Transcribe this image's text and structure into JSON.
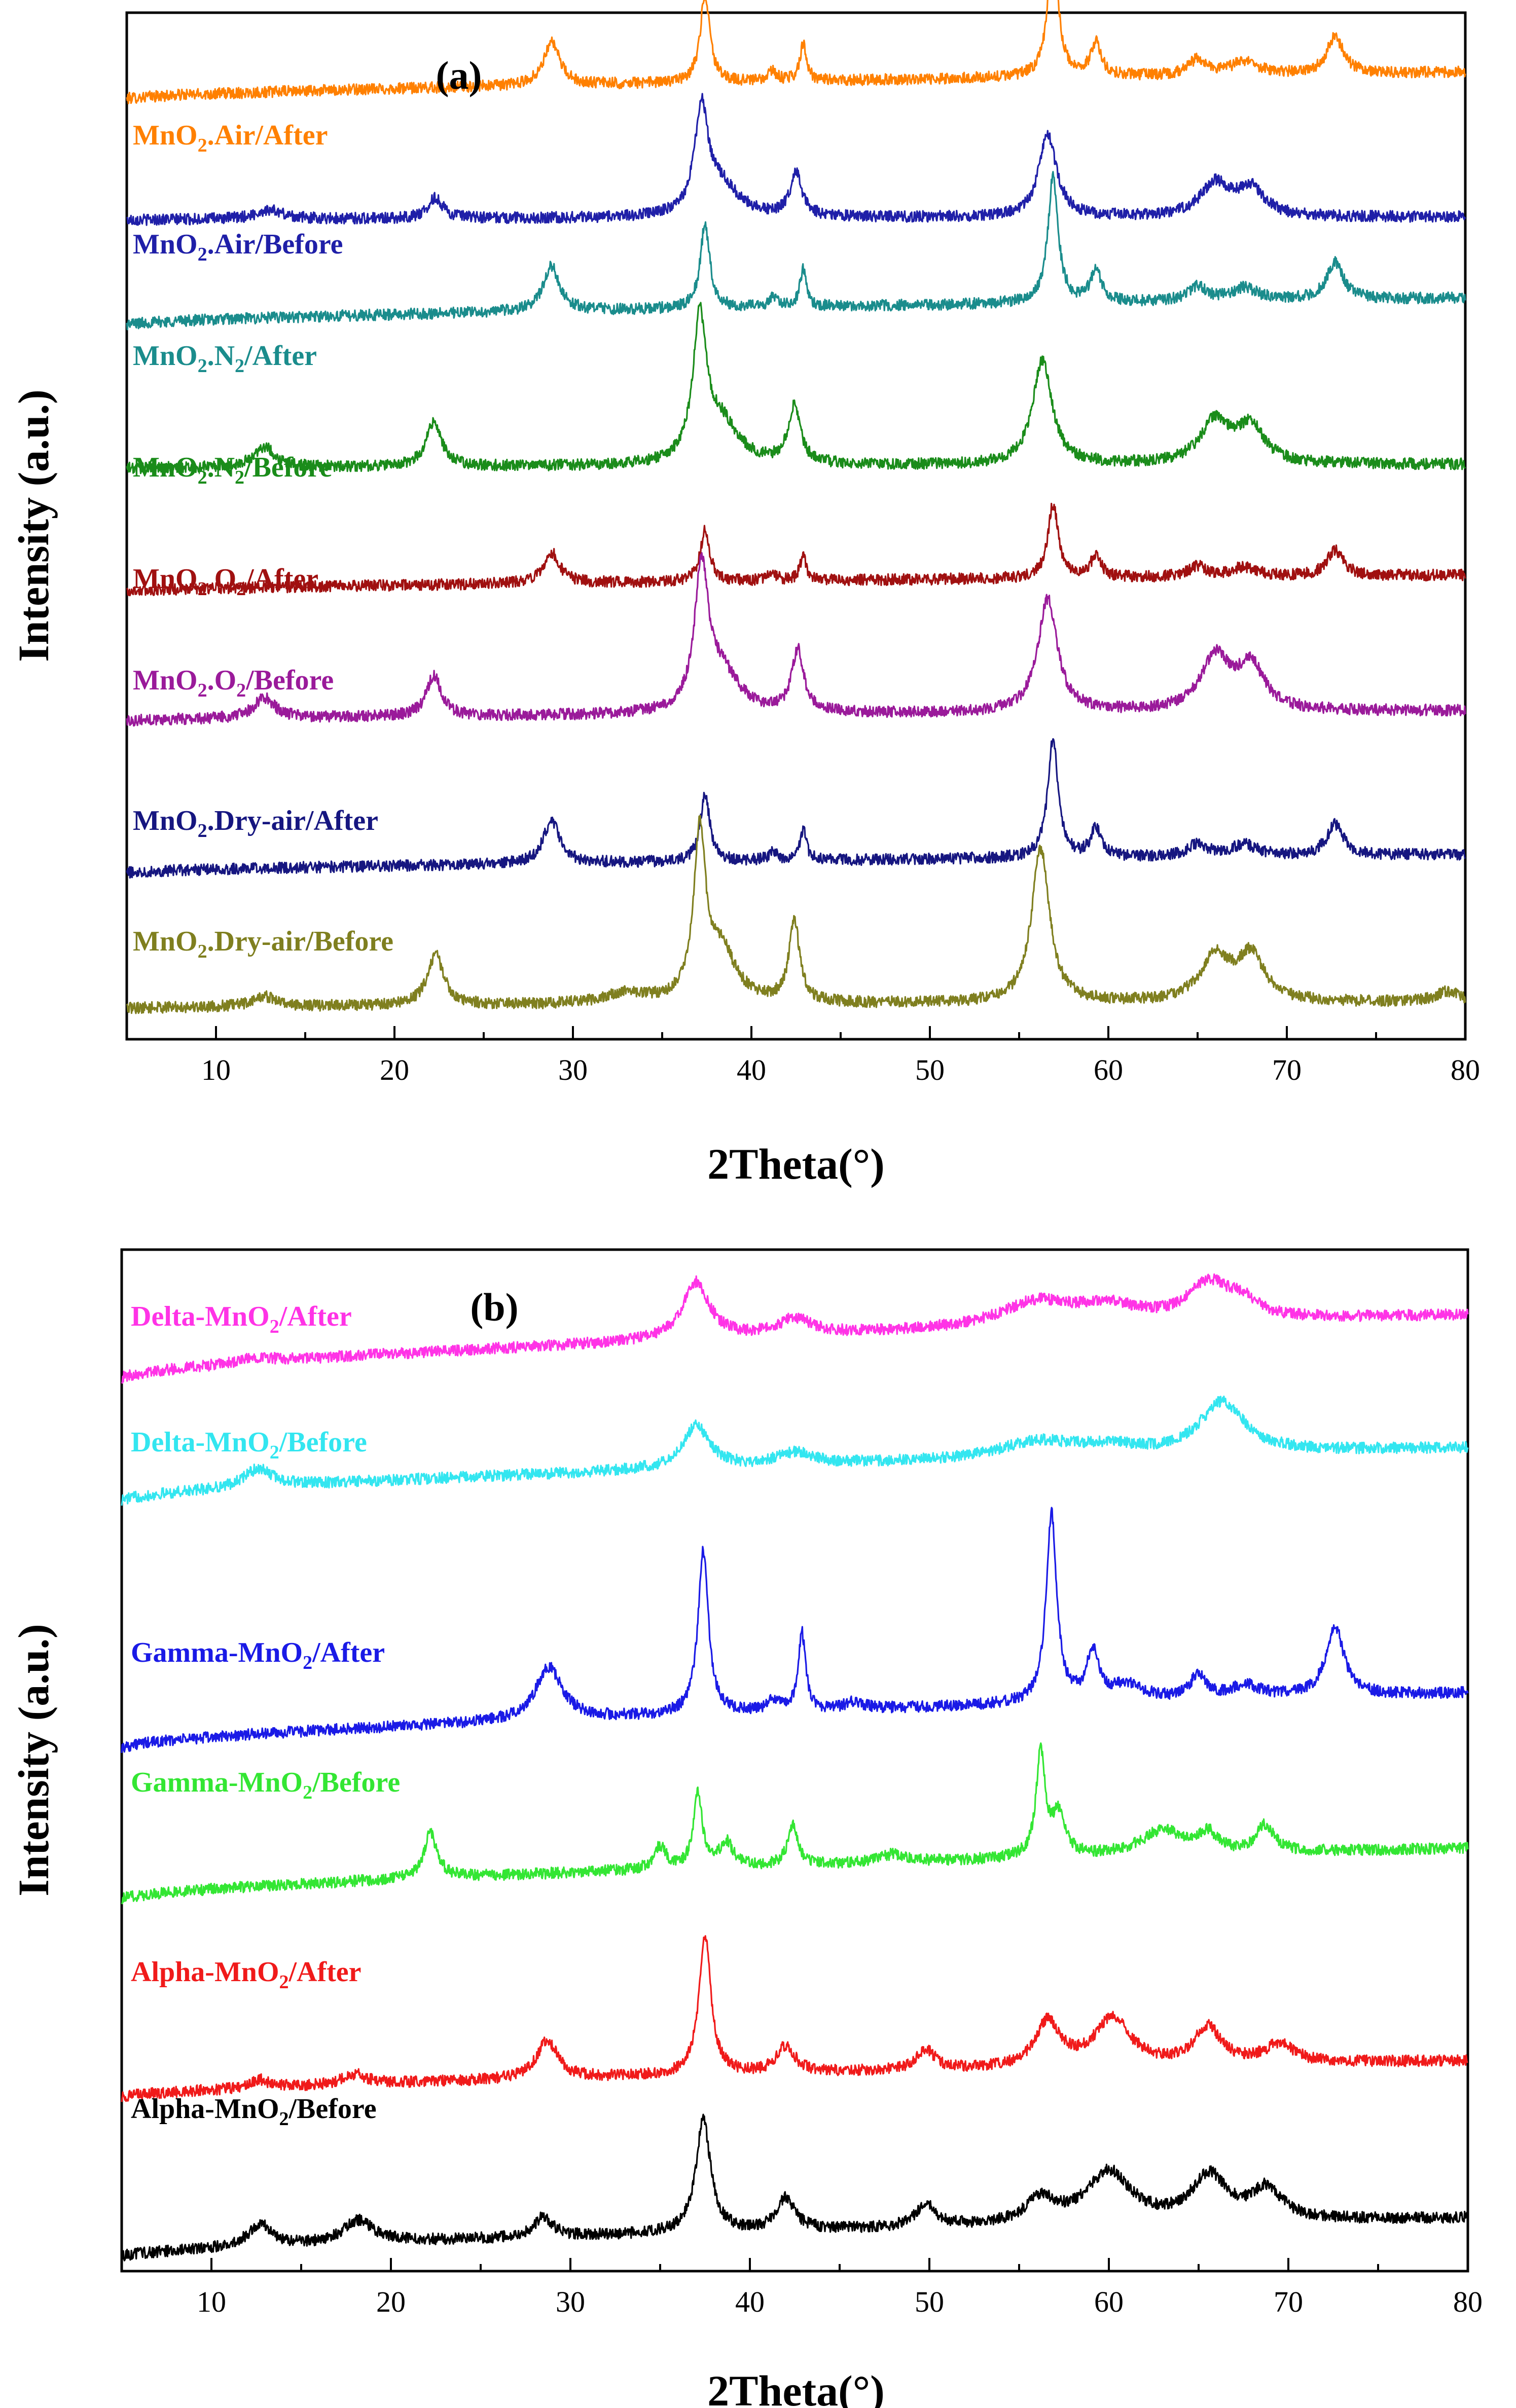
{
  "chart_data": [
    {
      "type": "line",
      "panel_label": "(a)",
      "xlabel": "2Theta(°)",
      "ylabel": "Intensity (a.u.)",
      "xlim": [
        5,
        80
      ],
      "xticks": [
        "10",
        "20",
        "30",
        "40",
        "50",
        "60",
        "70",
        "80"
      ],
      "ylim": [
        0,
        100
      ],
      "series": [
        {
          "name": "MnO2.Air/After",
          "label_parts": [
            "MnO",
            "2",
            ".Air/After"
          ],
          "color": "#FF8000",
          "baseline": 91.6,
          "slope": 2.6,
          "peaks": [
            [
              28.8,
              4.2,
              0.55
            ],
            [
              37.4,
              8.6,
              0.32
            ],
            [
              41.2,
              0.9,
              0.3
            ],
            [
              42.9,
              3.6,
              0.22
            ],
            [
              56.9,
              12.5,
              0.35
            ],
            [
              59.3,
              3.2,
              0.35
            ],
            [
              65.0,
              1.5,
              0.6
            ],
            [
              67.6,
              1.2,
              0.9
            ],
            [
              72.7,
              3.6,
              0.55
            ]
          ]
        },
        {
          "name": "MnO2.Air/Before",
          "label_parts": [
            "MnO",
            "2",
            ".Air/Before"
          ],
          "color": "#1F1FA8",
          "baseline": 79.8,
          "slope": 0.3,
          "peaks": [
            [
              13.0,
              0.9,
              0.9
            ],
            [
              22.3,
              2.0,
              0.5
            ],
            [
              37.2,
              10.0,
              0.45
            ],
            [
              38.3,
              3.0,
              1.2
            ],
            [
              42.5,
              4.2,
              0.4
            ],
            [
              56.6,
              8.0,
              0.6
            ],
            [
              66.0,
              3.2,
              1.0
            ],
            [
              68.0,
              2.6,
              0.9
            ]
          ]
        },
        {
          "name": "MnO2.N2/After",
          "label_parts": [
            "MnO",
            "2",
            ".N",
            "2",
            "/After"
          ],
          "color": "#1A8C8C",
          "baseline": 69.6,
          "slope": 2.6,
          "peaks": [
            [
              28.8,
              4.4,
              0.55
            ],
            [
              37.4,
              8.2,
              0.32
            ],
            [
              41.2,
              0.9,
              0.3
            ],
            [
              42.9,
              3.6,
              0.22
            ],
            [
              56.9,
              12.2,
              0.35
            ],
            [
              59.3,
              3.2,
              0.35
            ],
            [
              65.0,
              1.4,
              0.6
            ],
            [
              67.6,
              1.2,
              0.9
            ],
            [
              72.7,
              3.6,
              0.55
            ]
          ]
        },
        {
          "name": "MnO2.N2/Before",
          "label_parts": [
            "MnO",
            "2",
            ".N",
            "2",
            "/Before"
          ],
          "color": "#1A8C1A",
          "baseline": 55.6,
          "slope": 0.4,
          "peaks": [
            [
              12.7,
              2.0,
              0.7
            ],
            [
              22.2,
              4.4,
              0.5
            ],
            [
              37.1,
              13.5,
              0.45
            ],
            [
              38.3,
              4.0,
              1.2
            ],
            [
              42.4,
              5.6,
              0.4
            ],
            [
              56.3,
              10.2,
              0.65
            ],
            [
              66.0,
              4.2,
              1.0
            ],
            [
              68.0,
              3.5,
              0.9
            ]
          ]
        },
        {
          "name": "MnO2.O2/After",
          "label_parts": [
            "MnO",
            "2",
            ".O",
            "2",
            "/After"
          ],
          "color": "#A01010",
          "baseline": 43.6,
          "slope": 1.6,
          "peaks": [
            [
              28.8,
              3.0,
              0.55
            ],
            [
              37.4,
              5.0,
              0.32
            ],
            [
              41.2,
              0.7,
              0.3
            ],
            [
              42.9,
              2.3,
              0.22
            ],
            [
              56.9,
              7.2,
              0.35
            ],
            [
              59.3,
              2.2,
              0.35
            ],
            [
              65.0,
              1.0,
              0.6
            ],
            [
              67.6,
              0.9,
              0.9
            ],
            [
              72.7,
              2.5,
              0.55
            ]
          ]
        },
        {
          "name": "MnO2.O2/Before",
          "label_parts": [
            "MnO",
            "2",
            ".O",
            "2",
            "/Before"
          ],
          "color": "#9A1A9A",
          "baseline": 31.0,
          "slope": 1.0,
          "peaks": [
            [
              12.7,
              2.0,
              0.7
            ],
            [
              22.2,
              4.0,
              0.5
            ],
            [
              37.2,
              13.5,
              0.45
            ],
            [
              38.3,
              4.0,
              1.2
            ],
            [
              42.6,
              6.0,
              0.4
            ],
            [
              56.6,
              11.0,
              0.65
            ],
            [
              66.0,
              5.2,
              1.0
            ],
            [
              68.0,
              4.2,
              0.9
            ]
          ]
        },
        {
          "name": "MnO2.Dry-air/After",
          "label_parts": [
            "MnO",
            "2",
            ".Dry-air/After"
          ],
          "color": "#161680",
          "baseline": 16.2,
          "slope": 1.8,
          "peaks": [
            [
              28.8,
              4.2,
              0.55
            ],
            [
              37.4,
              6.6,
              0.32
            ],
            [
              41.2,
              0.8,
              0.3
            ],
            [
              42.9,
              3.0,
              0.22
            ],
            [
              56.9,
              11.6,
              0.35
            ],
            [
              59.3,
              2.8,
              0.35
            ],
            [
              65.0,
              1.2,
              0.6
            ],
            [
              67.6,
              1.1,
              0.9
            ],
            [
              72.7,
              3.0,
              0.55
            ]
          ]
        },
        {
          "name": "MnO2.Dry-air/Before",
          "label_parts": [
            "MnO",
            "2",
            ".Dry-air/Before"
          ],
          "color": "#7F7F1F",
          "baseline": 3.0,
          "slope": 0.6,
          "peaks": [
            [
              12.7,
              1.0,
              0.8
            ],
            [
              22.3,
              5.0,
              0.55
            ],
            [
              33.0,
              1.0,
              1.5
            ],
            [
              37.1,
              16.0,
              0.4
            ],
            [
              38.3,
              5.0,
              1.0
            ],
            [
              42.4,
              8.0,
              0.35
            ],
            [
              56.2,
              15.0,
              0.6
            ],
            [
              66.0,
              4.4,
              1.0
            ],
            [
              68.0,
              4.4,
              0.9
            ],
            [
              79.0,
              1.0,
              0.8
            ]
          ]
        }
      ]
    },
    {
      "type": "line",
      "panel_label": "(b)",
      "xlabel": "2Theta(°)",
      "ylabel": "Intensity (a.u.)",
      "xlim": [
        5,
        80
      ],
      "xticks": [
        "10",
        "20",
        "30",
        "40",
        "50",
        "60",
        "70",
        "80"
      ],
      "ylim": [
        0,
        100
      ],
      "series": [
        {
          "name": "Delta-MnO2/After",
          "label_parts": [
            "Delta-MnO",
            "2",
            "/After"
          ],
          "color": "#FF33E6",
          "baseline": 87.4,
          "slope": 6.2,
          "peaks": [
            [
              12.6,
              0.5,
              1.0
            ],
            [
              37.0,
              5.6,
              0.9
            ],
            [
              42.5,
              1.6,
              1.2
            ],
            [
              56.0,
              2.4,
              2.5
            ],
            [
              60.0,
              1.6,
              2.0
            ],
            [
              65.6,
              3.6,
              1.5
            ],
            [
              67.5,
              1.4,
              1.0
            ]
          ]
        },
        {
          "name": "Delta-MnO2/Before",
          "label_parts": [
            "Delta-MnO",
            "2",
            "/Before"
          ],
          "color": "#33E6F0",
          "baseline": 75.4,
          "slope": 5.2,
          "peaks": [
            [
              12.6,
              1.8,
              1.0
            ],
            [
              37.0,
              4.2,
              0.9
            ],
            [
              42.5,
              1.2,
              1.2
            ],
            [
              56.0,
              1.6,
              2.5
            ],
            [
              60.0,
              0.8,
              2.0
            ],
            [
              66.3,
              5.0,
              1.5
            ]
          ]
        },
        {
          "name": "Gamma-MnO2/After",
          "label_parts": [
            "Gamma-MnO",
            "2",
            "/After"
          ],
          "color": "#1A1AE6",
          "baseline": 51.2,
          "slope": 5.4,
          "peaks": [
            [
              28.8,
              5.2,
              0.9
            ],
            [
              37.4,
              16.0,
              0.35
            ],
            [
              41.3,
              1.0,
              0.4
            ],
            [
              42.9,
              7.6,
              0.25
            ],
            [
              45.8,
              0.7,
              0.6
            ],
            [
              56.8,
              18.5,
              0.35
            ],
            [
              59.1,
              4.8,
              0.4
            ],
            [
              61.0,
              1.5,
              1.2
            ],
            [
              65.0,
              2.4,
              0.5
            ],
            [
              67.6,
              1.2,
              1.0
            ],
            [
              72.6,
              6.8,
              0.6
            ]
          ]
        },
        {
          "name": "Gamma-MnO2/Before",
          "label_parts": [
            "Gamma-MnO",
            "2",
            "/Before"
          ],
          "color": "#33E633",
          "baseline": 36.4,
          "slope": 5.0,
          "peaks": [
            [
              22.2,
              4.4,
              0.45
            ],
            [
              35.0,
              2.2,
              0.4
            ],
            [
              37.1,
              7.2,
              0.3
            ],
            [
              38.7,
              2.4,
              0.45
            ],
            [
              42.4,
              3.8,
              0.35
            ],
            [
              48.0,
              0.8,
              0.8
            ],
            [
              56.2,
              10.2,
              0.3
            ],
            [
              57.2,
              4.0,
              0.45
            ],
            [
              63.0,
              2.4,
              1.5
            ],
            [
              65.5,
              1.8,
              0.6
            ],
            [
              68.7,
              2.6,
              0.6
            ]
          ]
        },
        {
          "name": "Alpha-MnO2/After",
          "label_parts": [
            "Alpha-MnO",
            "2",
            "/After"
          ],
          "color": "#F01A1A",
          "baseline": 17.0,
          "slope": 3.6,
          "peaks": [
            [
              12.7,
              0.8,
              0.6
            ],
            [
              18.0,
              1.0,
              0.8
            ],
            [
              28.7,
              3.8,
              0.7
            ],
            [
              37.5,
              13.6,
              0.4
            ],
            [
              42.0,
              2.6,
              0.6
            ],
            [
              49.8,
              2.0,
              0.6
            ],
            [
              56.6,
              4.4,
              0.8
            ],
            [
              60.2,
              4.6,
              1.2
            ],
            [
              65.5,
              3.6,
              0.9
            ],
            [
              69.5,
              1.8,
              1.0
            ]
          ]
        },
        {
          "name": "Alpha-MnO2/Before",
          "label_parts": [
            "Alpha-MnO",
            "2",
            "/Before"
          ],
          "color": "#000000",
          "baseline": 1.4,
          "slope": 3.8,
          "peaks": [
            [
              12.7,
              2.2,
              0.8
            ],
            [
              18.2,
              2.2,
              1.0
            ],
            [
              28.5,
              2.0,
              0.6
            ],
            [
              37.4,
              11.0,
              0.5
            ],
            [
              42.0,
              3.2,
              0.6
            ],
            [
              49.8,
              2.2,
              0.7
            ],
            [
              56.2,
              2.4,
              1.0
            ],
            [
              60.0,
              5.0,
              1.5
            ],
            [
              65.6,
              4.4,
              1.2
            ],
            [
              68.8,
              3.0,
              1.0
            ]
          ]
        }
      ]
    }
  ]
}
